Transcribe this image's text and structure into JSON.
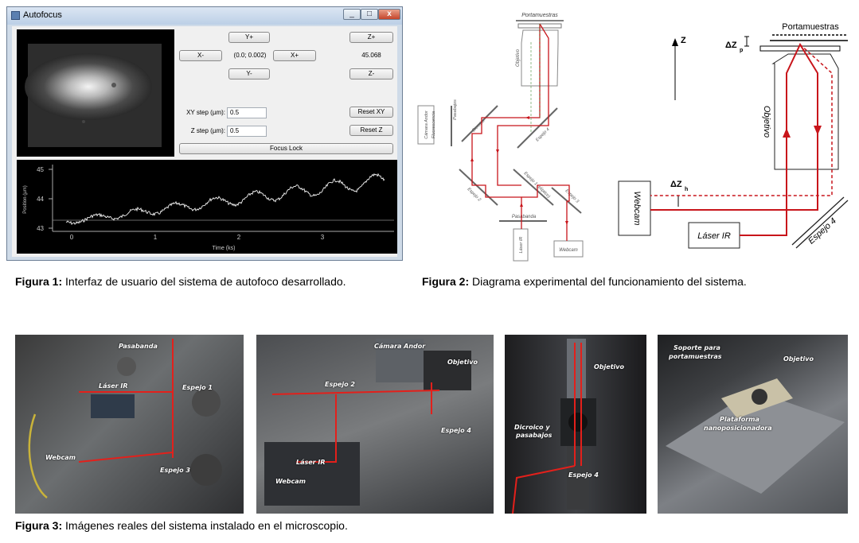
{
  "window": {
    "title": "Autofocus",
    "minimize": "_",
    "maximize": "□",
    "close": "x",
    "buttons": {
      "y_plus": "Y+",
      "y_minus": "Y-",
      "x_minus": "X-",
      "x_plus": "X+",
      "z_plus": "Z+",
      "z_minus": "Z-",
      "reset_xy": "Reset XY",
      "reset_z": "Reset Z",
      "focus_lock": "Focus Lock"
    },
    "xy_readout": "(0.0; 0.002)",
    "z_readout": "45.068",
    "xy_step_label": "XY step (µm):",
    "xy_step_value": "0.5",
    "z_step_label": "Z step (µm):",
    "z_step_value": "0.5",
    "plot": {
      "ylabel": "Position (µm)",
      "xlabel": "Time (ks)",
      "yticks": [
        "45",
        "44",
        "43"
      ],
      "xticks": [
        "0",
        "1",
        "2",
        "3"
      ]
    }
  },
  "fig1_caption": {
    "label": "Figura 1:",
    "text": " Interfaz de usuario del sistema de autofoco desarrollado."
  },
  "fig2_caption": {
    "label": "Figura 2:",
    "text": " Diagrama experimental del funcionamiento del sistema."
  },
  "fig3_caption": {
    "label": "Figura 3:",
    "text": " Imágenes reales del sistema instalado en el microscopio."
  },
  "diagram_left": {
    "portamuestras": "Portamuestras",
    "objetivo": "Objetivo",
    "camara": "Cámara Andor",
    "fluorescencia": "Fluorescencia",
    "pasabajos": "Pasabajos",
    "dicroico": "Dicroico",
    "espejo4": "Espejo 4",
    "espejo2": "Espejo 2",
    "espejo1": "Espejo 1 (elíptico)",
    "espejo3": "Espejo 3",
    "pasabanda": "Pasabanda",
    "laser": "Láser IR",
    "webcam": "Webcam"
  },
  "diagram_right": {
    "z": "Z",
    "dzp": "ΔZ",
    "dzp_sub": "p",
    "portamuestras": "Portamuestras",
    "objetivo": "Objetivo",
    "dzh": "ΔZ",
    "dzh_sub": "h",
    "webcam": "Webcam",
    "laser": "Láser IR",
    "espejo4": "Espejo 4"
  },
  "photos": {
    "p1": {
      "pasabanda": "Pasabanda",
      "laser": "Láser IR",
      "espejo1": "Espejo 1",
      "webcam": "Webcam",
      "espejo3": "Espejo 3"
    },
    "p2": {
      "camara": "Cámara Andor",
      "objetivo": "Objetivo",
      "espejo2": "Espejo 2",
      "espejo4": "Espejo 4",
      "laser": "Láser IR",
      "webcam": "Webcam"
    },
    "p3": {
      "objetivo": "Objetivo",
      "dicroico": "Dicroico y",
      "pasabajos": "pasabajos",
      "espejo4": "Espejo 4"
    },
    "p4": {
      "soporte1": "Soporte para",
      "soporte2": "portamuestras",
      "objetivo": "Objetivo",
      "plat1": "Plataforma",
      "plat2": "nanoposicionadora"
    }
  }
}
